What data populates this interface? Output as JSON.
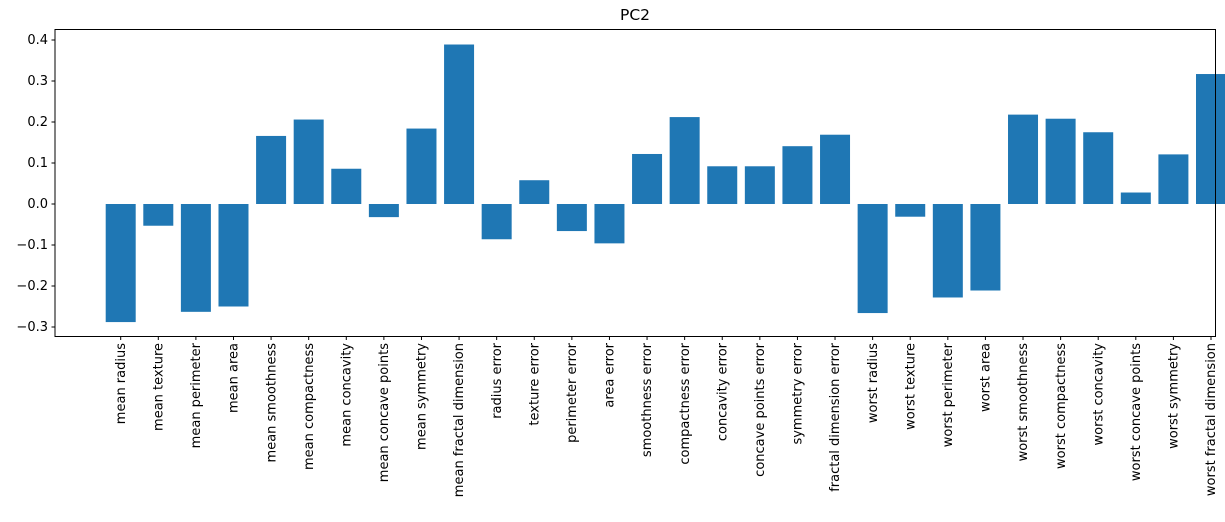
{
  "title": "PC2",
  "chart_data": {
    "type": "bar",
    "title": "PC2",
    "categories": [
      "mean radius",
      "mean texture",
      "mean perimeter",
      "mean area",
      "mean smoothness",
      "mean compactness",
      "mean concavity",
      "mean concave points",
      "mean symmetry",
      "mean fractal dimension",
      "radius error",
      "texture error",
      "perimeter error",
      "area error",
      "smoothness error",
      "compactness error",
      "concavity error",
      "concave points error",
      "symmetry error",
      "fractal dimension error",
      "worst radius",
      "worst texture",
      "worst perimeter",
      "worst area",
      "worst smoothness",
      "worst compactness",
      "worst concavity",
      "worst concave points",
      "worst symmetry",
      "worst fractal dimension"
    ],
    "values": [
      -0.288,
      -0.053,
      -0.263,
      -0.25,
      0.166,
      0.206,
      0.086,
      -0.032,
      0.184,
      0.389,
      -0.086,
      0.058,
      -0.066,
      -0.096,
      0.122,
      0.212,
      0.092,
      0.092,
      0.141,
      0.169,
      -0.266,
      -0.031,
      -0.228,
      -0.211,
      0.218,
      0.208,
      0.175,
      0.028,
      0.121,
      0.317
    ],
    "xlabel": "",
    "ylabel": "",
    "ylim": [
      -0.323,
      0.426
    ],
    "yticks": [
      0.4,
      0.3,
      0.2,
      0.1,
      0.0,
      -0.1,
      -0.2,
      -0.3
    ],
    "ytick_labels": [
      "0.4",
      "0.3",
      "0.2",
      "0.1",
      "0.0",
      "−0.1",
      "−0.2",
      "−0.3"
    ],
    "bar_color": "#1f77b4",
    "axis_color": "#000000",
    "grid": false,
    "legend": null,
    "x_labels_rotation_deg": 90
  }
}
